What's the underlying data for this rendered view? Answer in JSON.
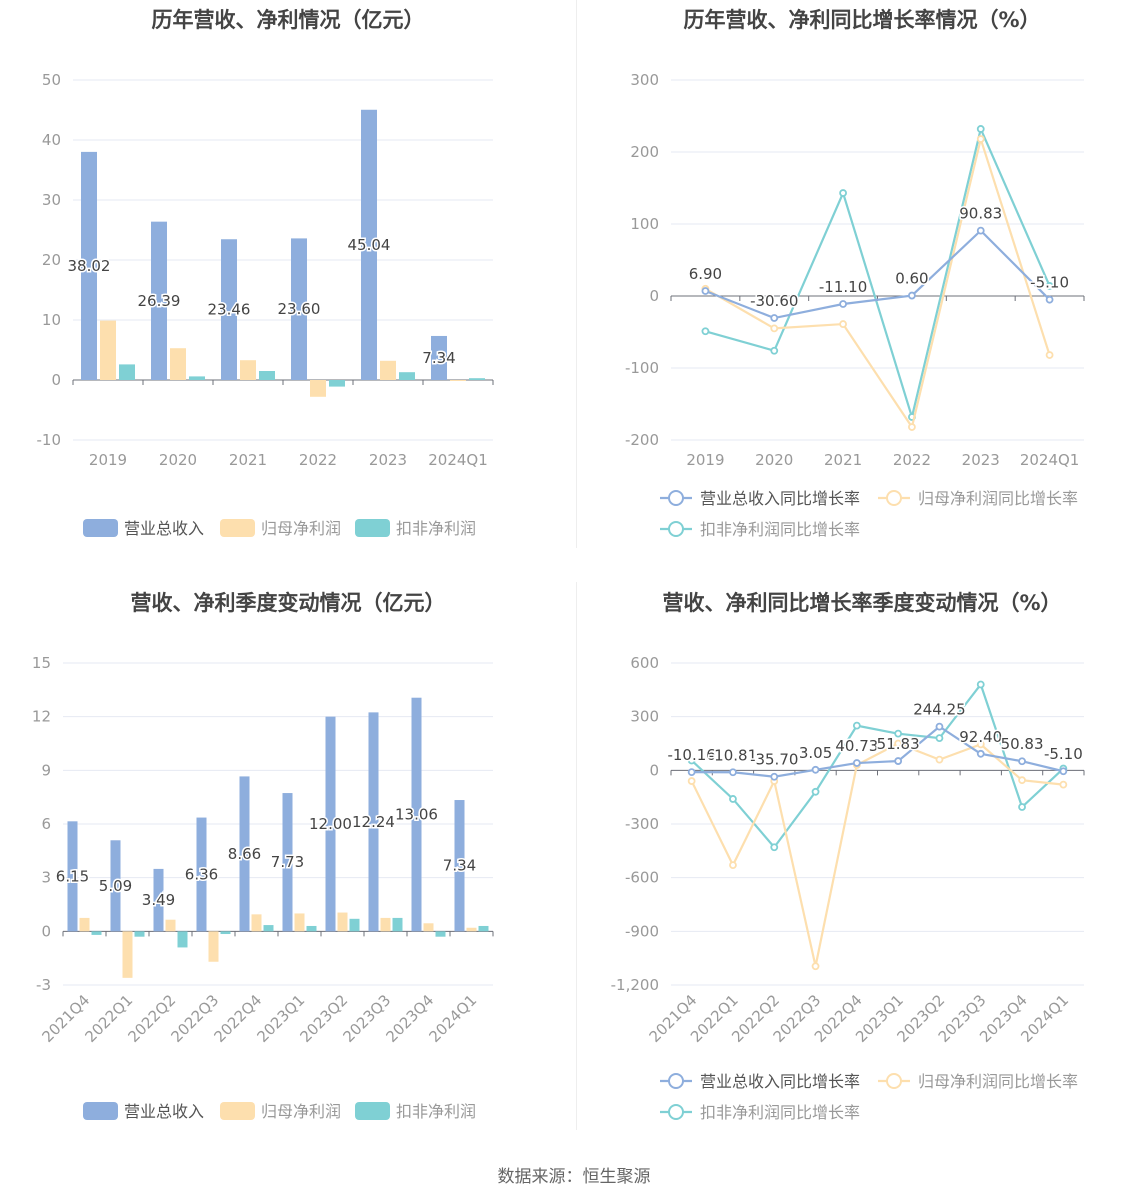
{
  "source": "数据来源：恒生聚源",
  "colors": {
    "revenue": "#8eaedd",
    "net_profit": "#fddfae",
    "deduct_profit": "#7fd0d4",
    "axis_text": "#999999",
    "grid": "#e6eaf3",
    "label": "#444444"
  },
  "chart_data": [
    {
      "id": "annual_bar",
      "type": "bar",
      "title": "历年营收、净利情况（亿元）",
      "categories": [
        "2019",
        "2020",
        "2021",
        "2022",
        "2023",
        "2024Q1"
      ],
      "yticks": [
        "50",
        "40",
        "30",
        "20",
        "10",
        "0",
        "-10"
      ],
      "ylim": [
        -10,
        50
      ],
      "series": [
        {
          "name": "营业总收入",
          "values": [
            38.02,
            26.39,
            23.46,
            23.6,
            45.04,
            7.34
          ],
          "labels": [
            "38.02",
            "26.39",
            "23.46",
            "23.60",
            "45.04",
            "7.34"
          ]
        },
        {
          "name": "归母净利润",
          "values": [
            9.9,
            5.3,
            3.3,
            -2.8,
            3.2,
            -0.1
          ]
        },
        {
          "name": "扣非净利润",
          "values": [
            2.6,
            0.6,
            1.5,
            -1.1,
            1.3,
            0.3
          ]
        }
      ],
      "legend": "bottom"
    },
    {
      "id": "annual_line",
      "type": "line",
      "title": "历年营收、净利同比增长率情况（%）",
      "categories": [
        "2019",
        "2020",
        "2021",
        "2022",
        "2023",
        "2024Q1"
      ],
      "yticks": [
        "300",
        "200",
        "100",
        "0",
        "-100",
        "-200"
      ],
      "ylim": [
        -200,
        300
      ],
      "series": [
        {
          "name": "营业总收入同比增长率",
          "values": [
            6.9,
            -30.6,
            -11.1,
            0.6,
            90.83,
            -5.1
          ],
          "labels": [
            "6.90",
            "-30.60",
            "-11.10",
            "0.60",
            "90.83",
            "-5.10"
          ]
        },
        {
          "name": "归母净利润同比增长率",
          "values": [
            10,
            -45,
            -39,
            -182,
            218,
            -82
          ]
        },
        {
          "name": "扣非净利润同比增长率",
          "values": [
            -49,
            -76,
            143,
            -168,
            232,
            14
          ]
        }
      ],
      "legend": "bottom"
    },
    {
      "id": "quarter_bar",
      "type": "bar",
      "title": "营收、净利季度变动情况（亿元）",
      "categories": [
        "2021Q4",
        "2022Q1",
        "2022Q2",
        "2022Q3",
        "2022Q4",
        "2023Q1",
        "2023Q2",
        "2023Q3",
        "2023Q4",
        "2024Q1"
      ],
      "yticks": [
        "15",
        "12",
        "9",
        "6",
        "3",
        "0",
        "-3"
      ],
      "ylim": [
        -3,
        15
      ],
      "series": [
        {
          "name": "营业总收入",
          "values": [
            6.15,
            5.09,
            3.49,
            6.36,
            8.66,
            7.73,
            12.0,
            12.24,
            13.06,
            7.34
          ],
          "labels": [
            "6.15",
            "5.09",
            "3.49",
            "6.36",
            "8.66",
            "7.73",
            "12.00",
            "12.24",
            "13.06",
            "7.34"
          ]
        },
        {
          "name": "归母净利润",
          "values": [
            0.75,
            -2.6,
            0.65,
            -1.7,
            0.95,
            1.0,
            1.05,
            0.75,
            0.45,
            0.2
          ]
        },
        {
          "name": "扣非净利润",
          "values": [
            -0.2,
            -0.3,
            -0.9,
            -0.15,
            0.35,
            0.3,
            0.7,
            0.75,
            -0.3,
            0.3
          ]
        }
      ],
      "legend": "bottom"
    },
    {
      "id": "quarter_line",
      "type": "line",
      "title": "营收、净利同比增长率季度变动情况（%）",
      "categories": [
        "2021Q4",
        "2022Q1",
        "2022Q2",
        "2022Q3",
        "2022Q4",
        "2023Q1",
        "2023Q2",
        "2023Q3",
        "2023Q4",
        "2024Q1"
      ],
      "yticks": [
        "600",
        "300",
        "0",
        "-300",
        "-600",
        "-900",
        "-1,200"
      ],
      "ylim": [
        -1200,
        600
      ],
      "series": [
        {
          "name": "营业总收入同比增长率",
          "values": [
            -10.16,
            -10.81,
            -35.7,
            3.05,
            40.73,
            51.83,
            244.25,
            92.4,
            50.83,
            -5.1
          ],
          "labels": [
            "-10.16",
            "-10.81",
            "-35.70",
            "3.05",
            "40.73",
            "51.83",
            "244.25",
            "92.40",
            "50.83",
            "-5.10"
          ]
        },
        {
          "name": "归母净利润同比增长率",
          "values": [
            -60,
            -530,
            -60,
            -1095,
            30,
            150,
            60,
            145,
            -55,
            -80
          ]
        },
        {
          "name": "扣非净利润同比增长率",
          "values": [
            55,
            -160,
            -430,
            -120,
            250,
            205,
            180,
            480,
            -205,
            10
          ]
        }
      ],
      "legend": "bottom"
    }
  ]
}
